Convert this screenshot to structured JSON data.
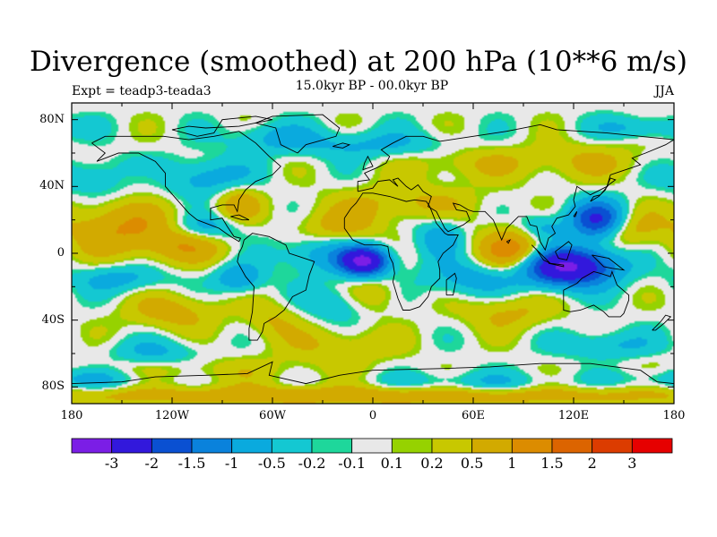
{
  "title": "Divergence (smoothed) at 200 hPa (10**6 m/s)",
  "subtitle": "15.0kyr BP - 00.0kyr BP",
  "expt_label": "Expt = teadp3-teada3",
  "season": "JJA",
  "lat_ticks": [
    {
      "value": 80,
      "label": "80N"
    },
    {
      "value": 40,
      "label": "40N"
    },
    {
      "value": 0,
      "label": "0"
    },
    {
      "value": -40,
      "label": "40S"
    },
    {
      "value": -80,
      "label": "80S"
    }
  ],
  "lon_ticks": [
    {
      "value": -180,
      "label": "180"
    },
    {
      "value": -120,
      "label": "120W"
    },
    {
      "value": -60,
      "label": "60W"
    },
    {
      "value": 0,
      "label": "0"
    },
    {
      "value": 60,
      "label": "60E"
    },
    {
      "value": 120,
      "label": "120E"
    },
    {
      "value": 180,
      "label": "180"
    }
  ],
  "colorbar": {
    "colors": [
      "#7b1ee6",
      "#3218dc",
      "#0a50d2",
      "#0a82dc",
      "#0aaade",
      "#14c8d2",
      "#1ed79b",
      "#e8e8e8",
      "#96d200",
      "#c8c800",
      "#d2aa00",
      "#dc8c00",
      "#dc6400",
      "#dc3c00",
      "#e60000"
    ],
    "labels": [
      "-3",
      "-2",
      "-1.5",
      "-1",
      "-0.5",
      "-0.2",
      "-0.1",
      "0.1",
      "0.2",
      "0.5",
      "1",
      "1.5",
      "2",
      "3"
    ]
  },
  "field": {
    "blobs": [
      [
        -150,
        15,
        25,
        12,
        1.0
      ],
      [
        -110,
        5,
        18,
        8,
        0.8
      ],
      [
        -120,
        -35,
        20,
        8,
        0.7
      ],
      [
        -20,
        15,
        18,
        8,
        0.7
      ],
      [
        20,
        30,
        30,
        8,
        0.6
      ],
      [
        85,
        0,
        15,
        10,
        1.6
      ],
      [
        150,
        15,
        12,
        8,
        0.8
      ],
      [
        -80,
        30,
        10,
        8,
        0.8
      ],
      [
        0,
        -25,
        12,
        8,
        0.6
      ],
      [
        80,
        -35,
        20,
        8,
        0.6
      ],
      [
        -60,
        -40,
        12,
        8,
        0.5
      ],
      [
        -20,
        -55,
        25,
        8,
        0.5
      ],
      [
        60,
        55,
        30,
        8,
        0.5
      ],
      [
        130,
        55,
        25,
        8,
        0.5
      ],
      [
        -140,
        45,
        15,
        6,
        0.5
      ],
      [
        0,
        -85,
        180,
        4,
        0.9
      ],
      [
        -120,
        -70,
        60,
        6,
        0.4
      ],
      [
        -5,
        -5,
        10,
        6,
        -3.0
      ],
      [
        115,
        -8,
        20,
        8,
        -3.3
      ],
      [
        135,
        20,
        12,
        8,
        -2.2
      ],
      [
        -100,
        15,
        15,
        6,
        -0.9
      ],
      [
        -160,
        45,
        20,
        8,
        -0.7
      ],
      [
        -100,
        45,
        20,
        8,
        -0.8
      ],
      [
        -30,
        0,
        20,
        8,
        -0.8
      ],
      [
        -20,
        -30,
        15,
        8,
        -0.6
      ],
      [
        40,
        10,
        10,
        8,
        -0.8
      ],
      [
        100,
        15,
        10,
        6,
        -0.8
      ],
      [
        60,
        -15,
        20,
        8,
        -0.8
      ],
      [
        -150,
        -15,
        20,
        6,
        -0.7
      ],
      [
        -80,
        -15,
        10,
        6,
        -1.0
      ],
      [
        -130,
        -60,
        20,
        6,
        -0.6
      ],
      [
        140,
        -55,
        20,
        6,
        -0.6
      ],
      [
        0,
        65,
        40,
        6,
        -0.6
      ],
      [
        -60,
        70,
        20,
        6,
        -0.5
      ],
      [
        160,
        75,
        20,
        5,
        -0.6
      ],
      [
        -170,
        -75,
        30,
        5,
        -0.7
      ],
      [
        60,
        -78,
        40,
        5,
        -0.5
      ]
    ]
  },
  "coastlines": [
    [
      [
        -168,
        66
      ],
      [
        -160,
        70
      ],
      [
        -140,
        70
      ],
      [
        -125,
        70
      ],
      [
        -110,
        68
      ],
      [
        -95,
        70
      ],
      [
        -80,
        73
      ],
      [
        -70,
        66
      ],
      [
        -62,
        58
      ],
      [
        -55,
        52
      ],
      [
        -60,
        47
      ],
      [
        -70,
        43
      ],
      [
        -76,
        38
      ],
      [
        -80,
        32
      ],
      [
        -81,
        25
      ],
      [
        -83,
        29
      ],
      [
        -90,
        29
      ],
      [
        -97,
        27
      ],
      [
        -97,
        20
      ],
      [
        -90,
        21
      ],
      [
        -87,
        16
      ],
      [
        -83,
        10
      ],
      [
        -79,
        9
      ],
      [
        -80,
        7
      ],
      [
        -85,
        10
      ],
      [
        -92,
        15
      ],
      [
        -105,
        20
      ],
      [
        -110,
        24
      ],
      [
        -117,
        32
      ],
      [
        -124,
        40
      ],
      [
        -124,
        48
      ],
      [
        -130,
        55
      ],
      [
        -140,
        60
      ],
      [
        -152,
        60
      ],
      [
        -165,
        55
      ],
      [
        -160,
        60
      ],
      [
        -168,
        66
      ]
    ],
    [
      [
        -77,
        8
      ],
      [
        -72,
        12
      ],
      [
        -62,
        10
      ],
      [
        -52,
        5
      ],
      [
        -50,
        0
      ],
      [
        -44,
        -2
      ],
      [
        -35,
        -5
      ],
      [
        -38,
        -13
      ],
      [
        -40,
        -22
      ],
      [
        -48,
        -26
      ],
      [
        -53,
        -34
      ],
      [
        -58,
        -38
      ],
      [
        -65,
        -42
      ],
      [
        -66,
        -47
      ],
      [
        -69,
        -52
      ],
      [
        -74,
        -52
      ],
      [
        -74,
        -45
      ],
      [
        -72,
        -35
      ],
      [
        -71,
        -20
      ],
      [
        -76,
        -14
      ],
      [
        -81,
        -5
      ],
      [
        -80,
        0
      ],
      [
        -78,
        4
      ],
      [
        -77,
        8
      ]
    ],
    [
      [
        -45,
        60
      ],
      [
        -55,
        65
      ],
      [
        -58,
        75
      ],
      [
        -70,
        78
      ],
      [
        -60,
        82
      ],
      [
        -30,
        83
      ],
      [
        -20,
        75
      ],
      [
        -22,
        70
      ],
      [
        -40,
        65
      ],
      [
        -45,
        60
      ]
    ],
    [
      [
        -17,
        21
      ],
      [
        -17,
        15
      ],
      [
        -12,
        8
      ],
      [
        -5,
        5
      ],
      [
        5,
        5
      ],
      [
        9,
        4
      ],
      [
        10,
        -2
      ],
      [
        12,
        -6
      ],
      [
        13,
        -12
      ],
      [
        12,
        -17
      ],
      [
        15,
        -27
      ],
      [
        18,
        -34
      ],
      [
        22,
        -34
      ],
      [
        28,
        -32
      ],
      [
        33,
        -26
      ],
      [
        35,
        -20
      ],
      [
        40,
        -15
      ],
      [
        40,
        -10
      ],
      [
        39,
        -5
      ],
      [
        42,
        0
      ],
      [
        48,
        5
      ],
      [
        51,
        11
      ],
      [
        45,
        11
      ],
      [
        43,
        12
      ],
      [
        38,
        18
      ],
      [
        34,
        28
      ],
      [
        32,
        31
      ],
      [
        25,
        32
      ],
      [
        20,
        31
      ],
      [
        10,
        34
      ],
      [
        0,
        36
      ],
      [
        -6,
        36
      ],
      [
        -10,
        30
      ],
      [
        -13,
        27
      ],
      [
        -17,
        21
      ]
    ],
    [
      [
        -9,
        37
      ],
      [
        -9,
        43
      ],
      [
        -2,
        44
      ],
      [
        -5,
        48
      ],
      [
        2,
        51
      ],
      [
        8,
        54
      ],
      [
        10,
        58
      ],
      [
        5,
        62
      ],
      [
        12,
        66
      ],
      [
        20,
        70
      ],
      [
        30,
        70
      ],
      [
        40,
        67
      ],
      [
        60,
        70
      ],
      [
        80,
        73
      ],
      [
        100,
        77
      ],
      [
        110,
        74
      ],
      [
        140,
        72
      ],
      [
        160,
        70
      ],
      [
        180,
        68
      ],
      [
        175,
        65
      ],
      [
        163,
        60
      ],
      [
        155,
        57
      ],
      [
        160,
        53
      ],
      [
        142,
        47
      ],
      [
        140,
        40
      ],
      [
        130,
        35
      ],
      [
        122,
        40
      ],
      [
        120,
        32
      ],
      [
        121,
        28
      ],
      [
        117,
        23
      ],
      [
        110,
        21
      ],
      [
        107,
        16
      ],
      [
        109,
        12
      ],
      [
        105,
        9
      ],
      [
        103,
        2
      ],
      [
        100,
        7
      ],
      [
        98,
        16
      ],
      [
        94,
        17
      ],
      [
        92,
        22
      ],
      [
        87,
        22
      ],
      [
        80,
        15
      ],
      [
        77,
        8
      ],
      [
        72,
        20
      ],
      [
        67,
        25
      ],
      [
        60,
        25
      ],
      [
        57,
        26
      ],
      [
        52,
        29
      ],
      [
        48,
        30
      ],
      [
        50,
        26
      ],
      [
        56,
        25
      ],
      [
        58,
        20
      ],
      [
        54,
        17
      ],
      [
        45,
        13
      ],
      [
        43,
        15
      ],
      [
        38,
        25
      ],
      [
        33,
        28
      ],
      [
        35,
        34
      ],
      [
        30,
        37
      ],
      [
        27,
        41
      ],
      [
        23,
        38
      ],
      [
        20,
        40
      ],
      [
        15,
        45
      ],
      [
        12,
        44
      ],
      [
        15,
        40
      ],
      [
        10,
        44
      ],
      [
        3,
        43
      ],
      [
        0,
        39
      ],
      [
        -9,
        37
      ]
    ],
    [
      [
        -6,
        50
      ],
      [
        -5,
        54
      ],
      [
        -3,
        58
      ],
      [
        -2,
        56
      ],
      [
        0,
        52
      ],
      [
        -6,
        50
      ]
    ],
    [
      [
        -24,
        64
      ],
      [
        -18,
        66
      ],
      [
        -14,
        65
      ],
      [
        -18,
        63
      ],
      [
        -24,
        64
      ]
    ],
    [
      [
        44,
        -25
      ],
      [
        48,
        -25
      ],
      [
        50,
        -15
      ],
      [
        49,
        -12
      ],
      [
        44,
        -16
      ],
      [
        44,
        -25
      ]
    ],
    [
      [
        114,
        -22
      ],
      [
        114,
        -34
      ],
      [
        118,
        -35
      ],
      [
        124,
        -34
      ],
      [
        132,
        -31
      ],
      [
        138,
        -35
      ],
      [
        141,
        -38
      ],
      [
        148,
        -38
      ],
      [
        150,
        -36
      ],
      [
        153,
        -28
      ],
      [
        153,
        -25
      ],
      [
        146,
        -19
      ],
      [
        143,
        -11
      ],
      [
        142,
        -14
      ],
      [
        136,
        -12
      ],
      [
        132,
        -11
      ],
      [
        125,
        -15
      ],
      [
        122,
        -18
      ],
      [
        114,
        -22
      ]
    ],
    [
      [
        95,
        5
      ],
      [
        100,
        0
      ],
      [
        106,
        -6
      ],
      [
        102,
        -4
      ],
      [
        98,
        2
      ],
      [
        95,
        5
      ]
    ],
    [
      [
        105,
        -6
      ],
      [
        114,
        -8
      ],
      [
        114,
        -7
      ],
      [
        106,
        -6
      ],
      [
        105,
        -6
      ]
    ],
    [
      [
        109,
        1
      ],
      [
        117,
        7
      ],
      [
        119,
        5
      ],
      [
        116,
        -4
      ],
      [
        111,
        -3
      ],
      [
        109,
        1
      ]
    ],
    [
      [
        131,
        -1
      ],
      [
        141,
        -3
      ],
      [
        150,
        -10
      ],
      [
        143,
        -9
      ],
      [
        138,
        -8
      ],
      [
        131,
        -1
      ]
    ],
    [
      [
        130,
        31
      ],
      [
        132,
        34
      ],
      [
        136,
        35
      ],
      [
        141,
        41
      ],
      [
        145,
        44
      ],
      [
        142,
        45
      ],
      [
        139,
        38
      ],
      [
        135,
        34
      ],
      [
        130,
        31
      ]
    ],
    [
      [
        120,
        22
      ],
      [
        122,
        25
      ],
      [
        121,
        22
      ],
      [
        120,
        22
      ]
    ],
    [
      [
        167,
        -46
      ],
      [
        172,
        -41
      ],
      [
        175,
        -37
      ],
      [
        178,
        -38
      ],
      [
        174,
        -42
      ],
      [
        169,
        -46
      ],
      [
        167,
        -46
      ]
    ],
    [
      [
        80,
        7
      ],
      [
        82,
        8
      ],
      [
        81,
        6
      ],
      [
        80,
        7
      ]
    ],
    [
      [
        -85,
        22
      ],
      [
        -80,
        23
      ],
      [
        -74,
        20
      ],
      [
        -78,
        20
      ],
      [
        -85,
        22
      ]
    ],
    [
      [
        -105,
        70
      ],
      [
        -95,
        72
      ],
      [
        -90,
        80
      ],
      [
        -70,
        82
      ],
      [
        -60,
        80
      ],
      [
        -80,
        76
      ],
      [
        -100,
        75
      ],
      [
        -110,
        76
      ],
      [
        -120,
        74
      ],
      [
        -105,
        70
      ]
    ],
    [
      [
        -180,
        -78
      ],
      [
        -150,
        -77
      ],
      [
        -130,
        -74
      ],
      [
        -100,
        -73
      ],
      [
        -75,
        -72
      ],
      [
        -60,
        -65
      ],
      [
        -62,
        -73
      ],
      [
        -40,
        -78
      ],
      [
        -20,
        -73
      ],
      [
        0,
        -70
      ],
      [
        40,
        -69
      ],
      [
        70,
        -68
      ],
      [
        100,
        -66
      ],
      [
        130,
        -66
      ],
      [
        160,
        -70
      ],
      [
        170,
        -77
      ],
      [
        180,
        -78
      ]
    ]
  ]
}
